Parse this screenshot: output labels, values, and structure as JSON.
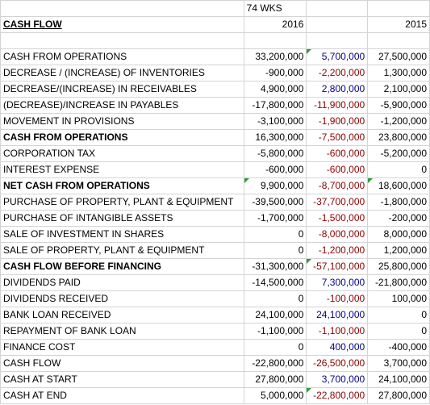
{
  "header": {
    "period_label": "74 WKS",
    "section_title": "CASH FLOW",
    "year_current": "2016",
    "year_prior": "2015"
  },
  "rows": [
    {
      "label": "CASH FROM OPERATIONS",
      "v2016": "33,200,000",
      "change": "5,700,000",
      "v2015": "27,500,000",
      "sign": "pos",
      "bold": false,
      "flag": true
    },
    {
      "label": "DECREASE / (INCREASE) OF INVENTORIES",
      "v2016": "-900,000",
      "change": "-2,200,000",
      "v2015": "1,300,000",
      "sign": "neg",
      "bold": false,
      "flag": false
    },
    {
      "label": "DECREASE/(INCREASE) IN RECEIVABLES",
      "v2016": "4,900,000",
      "change": "2,800,000",
      "v2015": "2,100,000",
      "sign": "pos",
      "bold": false,
      "flag": false
    },
    {
      "label": "(DECREASE)/INCREASE IN PAYABLES",
      "v2016": "-17,800,000",
      "change": "-11,900,000",
      "v2015": "-5,900,000",
      "sign": "neg",
      "bold": false,
      "flag": false
    },
    {
      "label": "MOVEMENT IN PROVISIONS",
      "v2016": "-3,100,000",
      "change": "-1,900,000",
      "v2015": "-1,200,000",
      "sign": "neg",
      "bold": false,
      "flag": false
    },
    {
      "label": "CASH FROM OPERATIONS",
      "v2016": "16,300,000",
      "change": "-7,500,000",
      "v2015": "23,800,000",
      "sign": "neg",
      "bold": true,
      "flag": false
    },
    {
      "label": "CORPORATION TAX",
      "v2016": "-5,800,000",
      "change": "-600,000",
      "v2015": "-5,200,000",
      "sign": "neg",
      "bold": false,
      "flag": false
    },
    {
      "label": "INTEREST EXPENSE",
      "v2016": "-600,000",
      "change": "-600,000",
      "v2015": "0",
      "sign": "neg",
      "bold": false,
      "flag": false
    },
    {
      "label": "NET CASH FROM OPERATIONS",
      "v2016": "9,900,000",
      "change": "-8,700,000",
      "v2015": "18,600,000",
      "sign": "neg",
      "bold": true,
      "flag": false,
      "flagFirst": true,
      "flagLast": true
    },
    {
      "label": "PURCHASE OF PROPERTY, PLANT & EQUIPMENT",
      "v2016": "-39,500,000",
      "change": "-37,700,000",
      "v2015": "-1,800,000",
      "sign": "neg",
      "bold": false,
      "flag": false
    },
    {
      "label": "PURCHASE OF INTANGIBLE ASSETS",
      "v2016": "-1,700,000",
      "change": "-1,500,000",
      "v2015": "-200,000",
      "sign": "neg",
      "bold": false,
      "flag": false
    },
    {
      "label": "SALE OF INVESTMENT IN SHARES",
      "v2016": "0",
      "change": "-8,000,000",
      "v2015": "8,000,000",
      "sign": "neg",
      "bold": false,
      "flag": false
    },
    {
      "label": "SALE OF PROPERTY, PLANT & EQUIPMENT",
      "v2016": "0",
      "change": "-1,200,000",
      "v2015": "1,200,000",
      "sign": "neg",
      "bold": false,
      "flag": false
    },
    {
      "label": "CASH FLOW BEFORE FINANCING",
      "v2016": "-31,300,000",
      "change": "-57,100,000",
      "v2015": "25,800,000",
      "sign": "neg",
      "bold": true,
      "flag": true
    },
    {
      "label": "DIVIDENDS PAID",
      "v2016": "-14,500,000",
      "change": "7,300,000",
      "v2015": "-21,800,000",
      "sign": "pos",
      "bold": false,
      "flag": false
    },
    {
      "label": "DIVIDENDS RECEIVED",
      "v2016": "0",
      "change": "-100,000",
      "v2015": "100,000",
      "sign": "neg",
      "bold": false,
      "flag": false
    },
    {
      "label": "BANK LOAN RECEIVED",
      "v2016": "24,100,000",
      "change": "24,100,000",
      "v2015": "0",
      "sign": "pos",
      "bold": false,
      "flag": false
    },
    {
      "label": "REPAYMENT OF BANK LOAN",
      "v2016": "-1,100,000",
      "change": "-1,100,000",
      "v2015": "0",
      "sign": "neg",
      "bold": false,
      "flag": false
    },
    {
      "label": "FINANCE COST",
      "v2016": "0",
      "change": "400,000",
      "v2015": "-400,000",
      "sign": "pos",
      "bold": false,
      "flag": false
    },
    {
      "label": "CASH FLOW",
      "v2016": "-22,800,000",
      "change": "-26,500,000",
      "v2015": "3,700,000",
      "sign": "neg",
      "bold": false,
      "flag": false
    },
    {
      "label": "CASH AT START",
      "v2016": "27,800,000",
      "change": "3,700,000",
      "v2015": "24,100,000",
      "sign": "pos",
      "bold": false,
      "flag": false
    },
    {
      "label": "CASH AT END",
      "v2016": "5,000,000",
      "change": "-22,800,000",
      "v2015": "27,800,000",
      "sign": "neg",
      "bold": false,
      "flag": true
    }
  ],
  "colors": {
    "positive_change": "#00008b",
    "negative_change": "#8b0000",
    "comment_flag": "#2e9b3b",
    "gridline": "#d4d4d4"
  }
}
